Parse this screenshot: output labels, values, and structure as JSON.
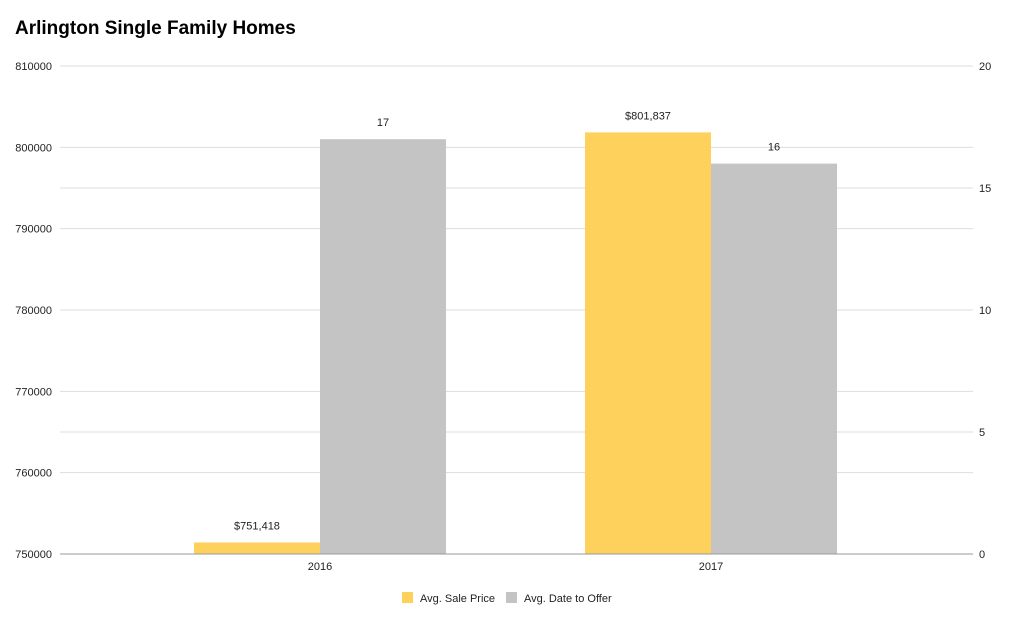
{
  "title": "Arlington Single Family Homes",
  "chart_data": {
    "type": "bar",
    "categories": [
      "2016",
      "2017"
    ],
    "series": [
      {
        "name": "Avg. Sale Price",
        "axis": "left",
        "values": [
          751418,
          801837
        ],
        "labels": [
          "$751,418",
          "$801,837"
        ],
        "color": "#FDD15C"
      },
      {
        "name": "Avg. Date to Offer",
        "axis": "right",
        "values": [
          17,
          16
        ],
        "labels": [
          "17",
          "16"
        ],
        "color": "#C4C4C4"
      }
    ],
    "left_axis": {
      "min": 750000,
      "max": 810000,
      "ticks": [
        "750000",
        "760000",
        "770000",
        "780000",
        "790000",
        "800000",
        "810000"
      ]
    },
    "right_axis": {
      "min": 0,
      "max": 20,
      "ticks": [
        "0",
        "5",
        "10",
        "15",
        "20"
      ]
    },
    "grid": true,
    "legend_position": "bottom",
    "gridline_color": "#DDDDDD"
  }
}
